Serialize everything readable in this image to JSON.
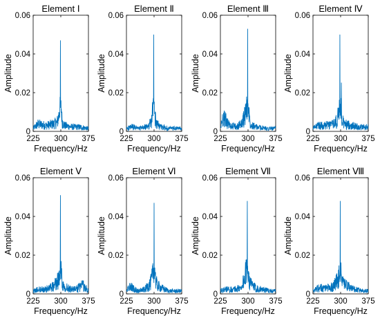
{
  "chart_data": [
    {
      "type": "line",
      "title": "Element Ⅰ",
      "xlabel": "Frequency/Hz",
      "ylabel": "Amplitude",
      "xlim": [
        225,
        375
      ],
      "ylim": [
        0,
        0.06
      ],
      "xticks": [
        "225",
        "300",
        "375"
      ],
      "yticks": [
        "0",
        "0.02",
        "0.04",
        "0.06"
      ],
      "series": [
        {
          "color": "#0072BD",
          "x": [
            225,
            238,
            260,
            280,
            290,
            296,
            299,
            302,
            305,
            310,
            330,
            350,
            375
          ],
          "y": [
            0.002,
            0.005,
            0.004,
            0.005,
            0.006,
            0.012,
            0.047,
            0.01,
            0.006,
            0.004,
            0.003,
            0.003,
            0.002
          ]
        }
      ]
    },
    {
      "type": "line",
      "title": "Element Ⅱ",
      "xlabel": "Frequency/Hz",
      "ylabel": "Amplitude",
      "xlim": [
        225,
        375
      ],
      "ylim": [
        0,
        0.06
      ],
      "xticks": [
        "225",
        "300",
        "375"
      ],
      "yticks": [
        "0",
        "0.02",
        "0.04",
        "0.06"
      ],
      "series": [
        {
          "color": "#0072BD",
          "x": [
            225,
            240,
            260,
            280,
            292,
            296,
            299,
            302,
            306,
            320,
            340,
            360,
            375
          ],
          "y": [
            0.002,
            0.003,
            0.002,
            0.003,
            0.006,
            0.013,
            0.05,
            0.011,
            0.005,
            0.003,
            0.002,
            0.002,
            0.002
          ]
        }
      ]
    },
    {
      "type": "line",
      "title": "Element Ⅲ",
      "xlabel": "Frequency/Hz",
      "ylabel": "Amplitude",
      "xlim": [
        225,
        375
      ],
      "ylim": [
        0,
        0.06
      ],
      "xticks": [
        "225",
        "300",
        "375"
      ],
      "yticks": [
        "0",
        "0.02",
        "0.04",
        "0.06"
      ],
      "series": [
        {
          "color": "#0072BD",
          "x": [
            225,
            232,
            250,
            270,
            285,
            292,
            296,
            299,
            302,
            306,
            320,
            350,
            375
          ],
          "y": [
            0.002,
            0.01,
            0.004,
            0.003,
            0.006,
            0.012,
            0.015,
            0.053,
            0.012,
            0.006,
            0.003,
            0.002,
            0.002
          ]
        }
      ]
    },
    {
      "type": "line",
      "title": "Element Ⅳ",
      "xlabel": "Frequency/Hz",
      "ylabel": "Amplitude",
      "xlim": [
        225,
        375
      ],
      "ylim": [
        0,
        0.06
      ],
      "xticks": [
        "225",
        "300",
        "375"
      ],
      "yticks": [
        "0",
        "0.02",
        "0.04",
        "0.06"
      ],
      "series": [
        {
          "color": "#0072BD",
          "x": [
            225,
            240,
            260,
            280,
            290,
            295,
            298,
            300,
            303,
            310,
            330,
            350,
            375
          ],
          "y": [
            0.002,
            0.004,
            0.004,
            0.005,
            0.007,
            0.012,
            0.05,
            0.045,
            0.008,
            0.005,
            0.004,
            0.003,
            0.003
          ]
        }
      ]
    },
    {
      "type": "line",
      "title": "Element Ⅴ",
      "xlabel": "Frequency/Hz",
      "ylabel": "Amplitude",
      "xlim": [
        225,
        375
      ],
      "ylim": [
        0,
        0.06
      ],
      "xticks": [
        "225",
        "300",
        "375"
      ],
      "yticks": [
        "0",
        "0.02",
        "0.04",
        "0.06"
      ],
      "series": [
        {
          "color": "#0072BD",
          "x": [
            225,
            240,
            260,
            280,
            290,
            296,
            299,
            302,
            306,
            320,
            340,
            360,
            375
          ],
          "y": [
            0.002,
            0.003,
            0.003,
            0.005,
            0.008,
            0.011,
            0.051,
            0.012,
            0.006,
            0.004,
            0.003,
            0.006,
            0.002
          ]
        }
      ]
    },
    {
      "type": "line",
      "title": "Element Ⅵ",
      "xlabel": "Frequency/Hz",
      "ylabel": "Amplitude",
      "xlim": [
        225,
        375
      ],
      "ylim": [
        0,
        0.06
      ],
      "xticks": [
        "225",
        "300",
        "375"
      ],
      "yticks": [
        "0",
        "0.02",
        "0.04",
        "0.06"
      ],
      "series": [
        {
          "color": "#0072BD",
          "x": [
            225,
            235,
            255,
            275,
            290,
            296,
            300,
            304,
            308,
            320,
            340,
            360,
            375
          ],
          "y": [
            0.002,
            0.005,
            0.002,
            0.003,
            0.007,
            0.012,
            0.047,
            0.01,
            0.006,
            0.004,
            0.002,
            0.002,
            0.002
          ]
        }
      ]
    },
    {
      "type": "line",
      "title": "Element Ⅶ",
      "xlabel": "Frequency/Hz",
      "ylabel": "Amplitude",
      "xlim": [
        225,
        375
      ],
      "ylim": [
        0,
        0.06
      ],
      "xticks": [
        "225",
        "300",
        "375"
      ],
      "yticks": [
        "0",
        "0.02",
        "0.04",
        "0.06"
      ],
      "series": [
        {
          "color": "#0072BD",
          "x": [
            225,
            240,
            260,
            280,
            290,
            295,
            298,
            302,
            306,
            320,
            340,
            360,
            375
          ],
          "y": [
            0.002,
            0.003,
            0.003,
            0.004,
            0.01,
            0.015,
            0.048,
            0.012,
            0.007,
            0.004,
            0.003,
            0.002,
            0.002
          ]
        }
      ]
    },
    {
      "type": "line",
      "title": "Element Ⅷ",
      "xlabel": "Frequency/Hz",
      "ylabel": "Amplitude",
      "xlim": [
        225,
        375
      ],
      "ylim": [
        0,
        0.06
      ],
      "xticks": [
        "225",
        "300",
        "375"
      ],
      "yticks": [
        "0",
        "0.02",
        "0.04",
        "0.06"
      ],
      "series": [
        {
          "color": "#0072BD",
          "x": [
            225,
            240,
            260,
            280,
            290,
            296,
            299,
            302,
            306,
            320,
            340,
            360,
            375
          ],
          "y": [
            0.002,
            0.004,
            0.004,
            0.005,
            0.009,
            0.012,
            0.048,
            0.011,
            0.007,
            0.005,
            0.003,
            0.002,
            0.002
          ]
        }
      ]
    }
  ]
}
